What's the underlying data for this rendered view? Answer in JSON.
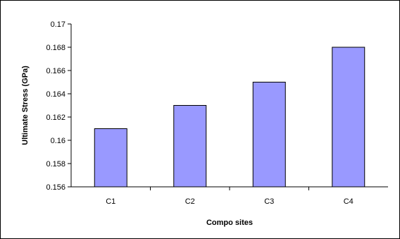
{
  "chart_data": {
    "type": "bar",
    "title": "",
    "xlabel": "Compo sites",
    "ylabel": "Ultimate Stress (GPa)",
    "categories": [
      "C1",
      "C2",
      "C3",
      "C4"
    ],
    "values": [
      0.161,
      0.163,
      0.165,
      0.168
    ],
    "ylim": [
      0.156,
      0.17
    ],
    "yticks": [
      "0.156",
      "0.158",
      "0.16",
      "0.162",
      "0.164",
      "0.166",
      "0.168",
      "0.17"
    ],
    "grid": false,
    "legend": "none",
    "bar_color": "#9999FF",
    "bar_stroke": "#000000"
  }
}
